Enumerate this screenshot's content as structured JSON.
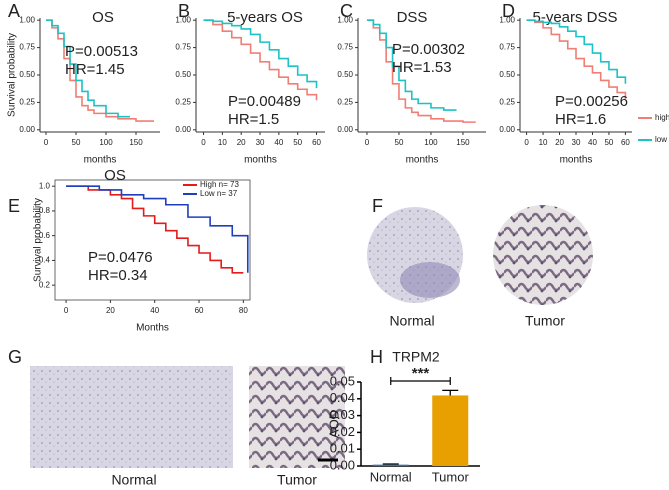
{
  "panel_labels": [
    "A",
    "B",
    "C",
    "D",
    "E",
    "F",
    "G",
    "H"
  ],
  "figures": {
    "F": [
      "Normal",
      "Tumor"
    ],
    "G": [
      "Normal",
      "Tumor"
    ]
  },
  "chart_data": [
    {
      "type": "km",
      "title": "OS",
      "xlabel": "months",
      "ylabel": "Survival probability",
      "xlim": [
        -10,
        190
      ],
      "xticks": [
        0,
        50,
        100,
        150
      ],
      "ylim": [
        -0.02,
        1.02
      ],
      "yticks": [
        {
          "value": 0,
          "label": "0.00"
        },
        {
          "value": 0.25,
          "label": "0.25"
        },
        {
          "value": 0.5,
          "label": "0.50"
        },
        {
          "value": 0.75,
          "label": "0.75"
        },
        {
          "value": 1,
          "label": "1.00"
        }
      ],
      "annotations": [
        "P=0.00513",
        "HR=1.45"
      ],
      "series": [
        {
          "color": "#f07e74",
          "x": [
            0,
            10,
            20,
            30,
            40,
            50,
            60,
            70,
            80,
            100,
            120,
            150,
            180
          ],
          "values": [
            1,
            0.93,
            0.83,
            0.65,
            0.45,
            0.3,
            0.22,
            0.18,
            0.15,
            0.12,
            0.1,
            0.08,
            0.08
          ]
        },
        {
          "color": "#1cc2c4",
          "x": [
            0,
            10,
            20,
            30,
            40,
            50,
            60,
            70,
            80,
            100,
            120,
            140
          ],
          "values": [
            1,
            0.95,
            0.88,
            0.76,
            0.6,
            0.45,
            0.35,
            0.27,
            0.22,
            0.15,
            0.12,
            0.12
          ]
        }
      ]
    },
    {
      "type": "km",
      "title": "5-years OS",
      "xlabel": "months",
      "xlim": [
        -4,
        64.5
      ],
      "xticks": [
        0,
        10,
        20,
        30,
        40,
        50,
        60
      ],
      "ylim": [
        -0.02,
        1.02
      ],
      "yticks": [
        {
          "value": 0,
          "label": "0.00"
        },
        {
          "value": 0.25,
          "label": "0.25"
        },
        {
          "value": 0.5,
          "label": "0.50"
        },
        {
          "value": 0.75,
          "label": "0.75"
        },
        {
          "value": 1,
          "label": "1.00"
        }
      ],
      "annotations": [
        "P=0.00489",
        "HR=1.5"
      ],
      "series": [
        {
          "color": "#f07e74",
          "x": [
            0,
            5,
            10,
            15,
            20,
            25,
            30,
            35,
            40,
            45,
            50,
            55,
            60
          ],
          "values": [
            1,
            0.96,
            0.9,
            0.84,
            0.78,
            0.7,
            0.62,
            0.55,
            0.48,
            0.42,
            0.37,
            0.32,
            0.27
          ]
        },
        {
          "color": "#1cc2c4",
          "x": [
            0,
            5,
            10,
            15,
            20,
            25,
            30,
            35,
            40,
            45,
            50,
            55,
            60
          ],
          "values": [
            1,
            0.99,
            0.97,
            0.95,
            0.92,
            0.87,
            0.8,
            0.73,
            0.65,
            0.58,
            0.5,
            0.44,
            0.38
          ]
        }
      ]
    },
    {
      "type": "km",
      "title": "DSS",
      "xlabel": "months",
      "xlim": [
        -14,
        186
      ],
      "xticks": [
        0,
        50,
        100,
        150
      ],
      "ylim": [
        -0.02,
        1.02
      ],
      "yticks": [
        {
          "value": 0,
          "label": "0.00"
        },
        {
          "value": 0.25,
          "label": "0.25"
        },
        {
          "value": 0.5,
          "label": "0.50"
        },
        {
          "value": 0.75,
          "label": "0.75"
        },
        {
          "value": 1,
          "label": "1.00"
        }
      ],
      "annotations": [
        "P=0.00302",
        "HR=1.53"
      ],
      "series": [
        {
          "color": "#f07e74",
          "x": [
            0,
            10,
            20,
            30,
            40,
            50,
            60,
            70,
            80,
            100,
            120,
            150,
            170
          ],
          "values": [
            1,
            0.93,
            0.82,
            0.62,
            0.42,
            0.28,
            0.2,
            0.16,
            0.13,
            0.1,
            0.08,
            0.07,
            0.07
          ]
        },
        {
          "color": "#1cc2c4",
          "x": [
            0,
            10,
            20,
            30,
            40,
            50,
            60,
            70,
            80,
            100,
            120,
            140
          ],
          "values": [
            1,
            0.96,
            0.88,
            0.75,
            0.58,
            0.45,
            0.35,
            0.28,
            0.24,
            0.2,
            0.18,
            0.18
          ]
        }
      ]
    },
    {
      "type": "km",
      "title": "5-years DSS",
      "xlabel": "months",
      "xlim": [
        -4,
        64
      ],
      "xticks": [
        0,
        10,
        20,
        30,
        40,
        50,
        60
      ],
      "ylim": [
        -0.02,
        1.02
      ],
      "yticks": [
        {
          "value": 0,
          "label": "0.00"
        },
        {
          "value": 0.25,
          "label": "0.25"
        },
        {
          "value": 0.5,
          "label": "0.50"
        },
        {
          "value": 0.75,
          "label": "0.75"
        },
        {
          "value": 1,
          "label": "1.00"
        }
      ],
      "annotations": [
        "P=0.00256",
        "HR=1.6"
      ],
      "series": [
        {
          "name": "high",
          "color": "#f07e74",
          "x": [
            0,
            5,
            10,
            15,
            20,
            25,
            30,
            35,
            40,
            45,
            50,
            55,
            60
          ],
          "values": [
            1,
            0.98,
            0.93,
            0.87,
            0.81,
            0.74,
            0.65,
            0.58,
            0.52,
            0.45,
            0.39,
            0.34,
            0.28
          ]
        },
        {
          "name": "low",
          "color": "#1cc2c4",
          "x": [
            0,
            5,
            10,
            15,
            20,
            25,
            30,
            35,
            40,
            45,
            50,
            55,
            60
          ],
          "values": [
            1,
            0.99,
            0.98,
            0.97,
            0.94,
            0.9,
            0.85,
            0.78,
            0.7,
            0.62,
            0.55,
            0.48,
            0.42
          ]
        }
      ]
    },
    {
      "type": "km",
      "title": "OS",
      "xlabel": "Months",
      "ylabel": "Survival probability",
      "xlim": [
        -5,
        83
      ],
      "xticks": [
        0,
        20,
        40,
        60,
        80
      ],
      "ylim": [
        0.08,
        1.05
      ],
      "yticks": [
        {
          "value": 0.2,
          "label": "0.2"
        },
        {
          "value": 0.4,
          "label": "0.4"
        },
        {
          "value": 0.6,
          "label": "0.6"
        },
        {
          "value": 0.8,
          "label": "0.8"
        },
        {
          "value": 1,
          "label": "1.0"
        }
      ],
      "annotations": [
        "P=0.0476",
        "HR=0.34"
      ],
      "series": [
        {
          "name": "High n= 73",
          "color": "#e41a1c",
          "x": [
            0,
            10,
            20,
            25,
            30,
            35,
            40,
            45,
            50,
            55,
            60,
            65,
            70,
            75,
            80
          ],
          "values": [
            1,
            0.97,
            0.93,
            0.9,
            0.82,
            0.76,
            0.7,
            0.64,
            0.58,
            0.52,
            0.46,
            0.4,
            0.34,
            0.3,
            0.3
          ]
        },
        {
          "name": "Low n= 37",
          "color": "#1f3fbf",
          "x": [
            0,
            15,
            25,
            35,
            45,
            55,
            65,
            75,
            80,
            82
          ],
          "values": [
            1,
            0.97,
            0.93,
            0.9,
            0.85,
            0.75,
            0.68,
            0.6,
            0.6,
            0.3
          ]
        }
      ]
    },
    {
      "type": "bar",
      "title": "TRPM2",
      "ylabel": "AOD",
      "categories": [
        "Normal",
        "Tumor"
      ],
      "values": [
        0.0008,
        0.042
      ],
      "errors": [
        0.0004,
        0.003
      ],
      "colors": [
        "#2e75b6",
        "#e8a000"
      ],
      "ylim": [
        0,
        0.05
      ],
      "yticks": [
        {
          "value": 0,
          "label": "0.00"
        },
        {
          "value": 0.01,
          "label": "0.01"
        },
        {
          "value": 0.02,
          "label": "0.02"
        },
        {
          "value": 0.03,
          "label": "0.03"
        },
        {
          "value": 0.04,
          "label": "0.04"
        },
        {
          "value": 0.05,
          "label": "0.05"
        }
      ],
      "significance": "***"
    }
  ]
}
